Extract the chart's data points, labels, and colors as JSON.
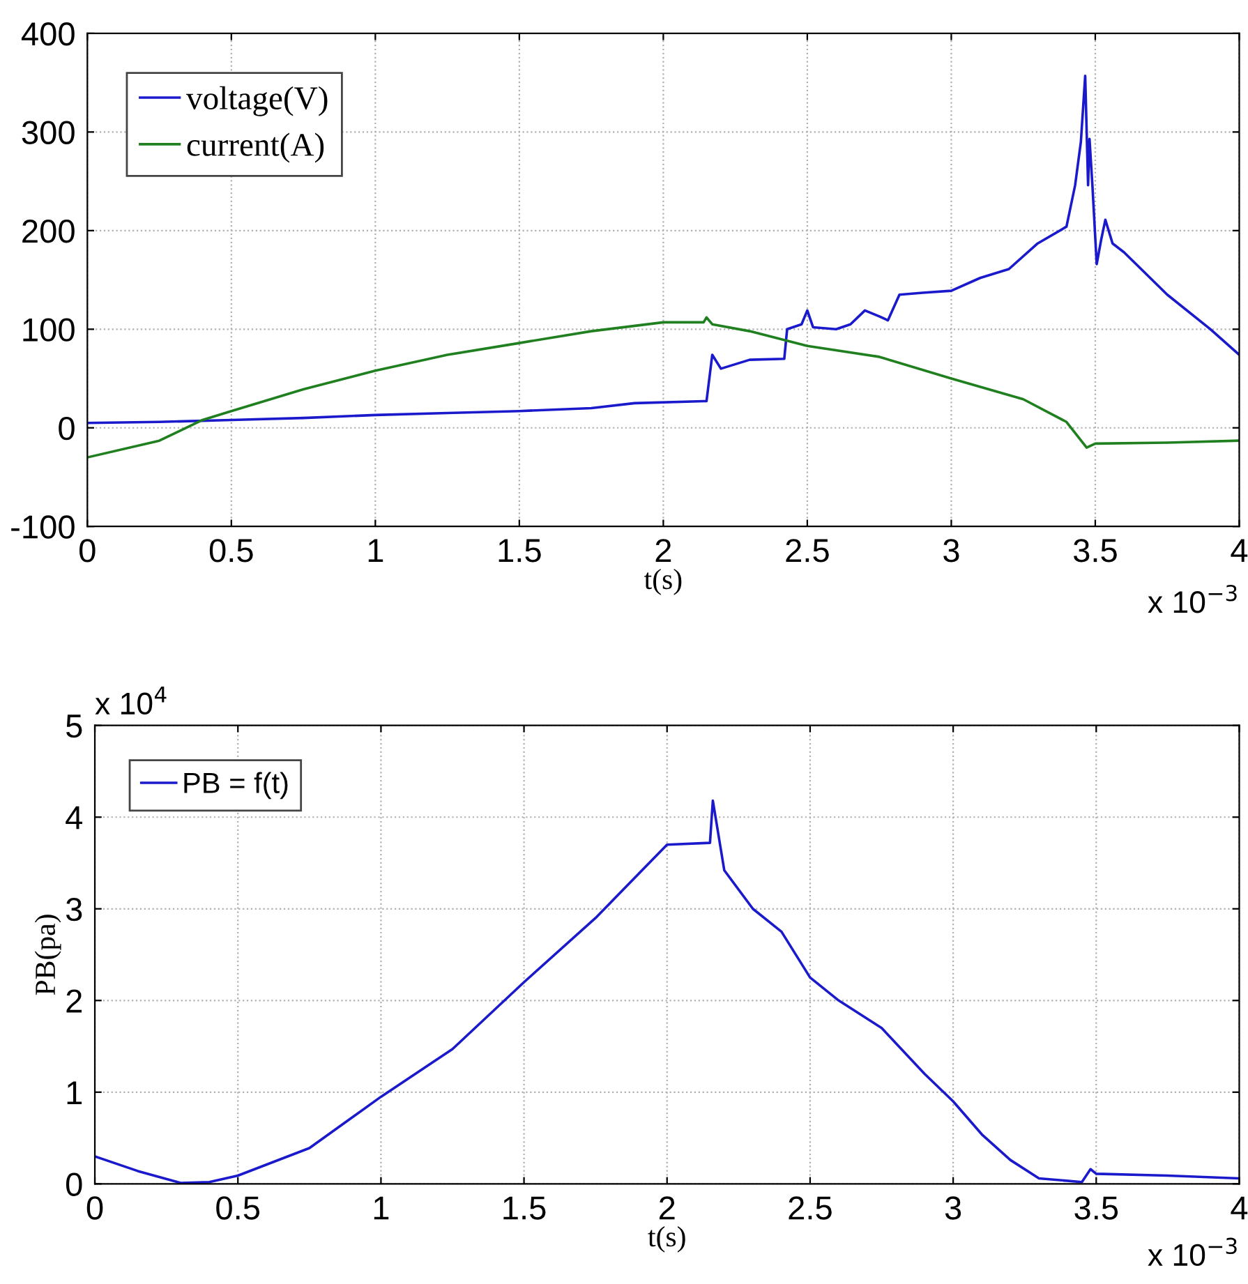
{
  "chart_data": [
    {
      "type": "line",
      "xlabel": "t(s)",
      "xlim": [
        0,
        4
      ],
      "xticks": [
        0,
        0.5,
        1,
        1.5,
        2,
        2.5,
        3,
        3.5,
        4
      ],
      "ylim": [
        -100,
        400
      ],
      "yticks": [
        -100,
        0,
        100,
        200,
        300,
        400
      ],
      "grid": true,
      "legend": "top left",
      "annotations": [
        "x 10$^{−3}$"
      ],
      "series": [
        {
          "name": "voltage(V)",
          "color": "#1a1acc",
          "x": [
            0,
            0.25,
            0.5,
            0.75,
            1.0,
            1.25,
            1.5,
            1.75,
            1.9,
            2.14,
            2.15,
            2.17,
            2.2,
            2.3,
            2.42,
            2.43,
            2.48,
            2.5,
            2.52,
            2.6,
            2.65,
            2.7,
            2.75,
            2.78,
            2.82,
            2.9,
            3.0,
            3.1,
            3.2,
            3.3,
            3.4,
            3.43,
            3.45,
            3.465,
            3.475,
            3.48,
            3.49,
            3.505,
            3.52,
            3.535,
            3.56,
            3.6,
            3.75,
            3.9,
            4.0
          ],
          "values": [
            5,
            6,
            8,
            10,
            13,
            15,
            17,
            20,
            25,
            27,
            27,
            74,
            60,
            69,
            70,
            100,
            105,
            119,
            102,
            100,
            105,
            119,
            113,
            109,
            135,
            137,
            139,
            152,
            161,
            187,
            204,
            246,
            290,
            357,
            246,
            293,
            246,
            166,
            190,
            211,
            187,
            178,
            135,
            100,
            74
          ]
        },
        {
          "name": "current(A)",
          "color": "#208020",
          "x": [
            0,
            0.25,
            0.4,
            0.5,
            0.75,
            1.0,
            1.25,
            1.5,
            1.75,
            2.0,
            2.14,
            2.15,
            2.17,
            2.3,
            2.5,
            2.75,
            3.0,
            3.25,
            3.4,
            3.47,
            3.5,
            3.75,
            4.0
          ],
          "values": [
            -30,
            -13,
            8,
            17,
            39,
            58,
            74,
            86,
            98,
            107,
            107,
            112,
            105,
            98,
            83,
            72,
            50,
            29,
            6,
            -20,
            -16,
            -15,
            -13
          ]
        }
      ]
    },
    {
      "type": "line",
      "xlabel": "t(s)",
      "ylabel": "PB(pa)",
      "xlim": [
        0,
        4
      ],
      "xticks": [
        0,
        0.5,
        1,
        1.5,
        2,
        2.5,
        3,
        3.5,
        4
      ],
      "ylim": [
        0,
        5
      ],
      "yticks": [
        0,
        1,
        2,
        3,
        4,
        5
      ],
      "grid": true,
      "legend": "top left",
      "annotations": [
        "x 10$^{4}$",
        "x 10$^{−3}$"
      ],
      "series": [
        {
          "name": "PB = f(t)",
          "color": "#1a1acc",
          "x": [
            0,
            0.15,
            0.3,
            0.4,
            0.5,
            0.75,
            1.0,
            1.25,
            1.5,
            1.75,
            2.0,
            2.15,
            2.16,
            2.2,
            2.3,
            2.4,
            2.5,
            2.6,
            2.75,
            2.9,
            3.0,
            3.1,
            3.2,
            3.3,
            3.45,
            3.48,
            3.5,
            3.75,
            4.0
          ],
          "values": [
            0.3,
            0.14,
            0.01,
            0.02,
            0.09,
            0.39,
            0.95,
            1.47,
            2.2,
            2.9,
            3.7,
            3.72,
            4.18,
            3.42,
            3.0,
            2.75,
            2.25,
            2.0,
            1.7,
            1.2,
            0.9,
            0.54,
            0.26,
            0.06,
            0.02,
            0.16,
            0.11,
            0.09,
            0.06
          ]
        }
      ]
    }
  ]
}
